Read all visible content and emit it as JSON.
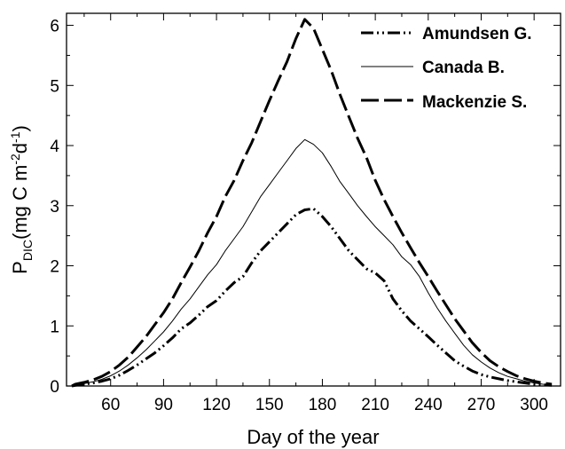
{
  "chart_data": {
    "type": "line",
    "title": "",
    "xlabel": "Day of the year",
    "ylabel": {
      "main": "P",
      "sub": "DIC",
      "unit_a": "(mg C m",
      "sup_a": "-2",
      "unit_b": "d",
      "sup_b": "-1",
      "unit_c": ")"
    },
    "xlim": [
      35,
      315
    ],
    "ylim": [
      0,
      6.2
    ],
    "xticks": [
      60,
      90,
      120,
      150,
      180,
      210,
      240,
      270,
      300
    ],
    "yticks": [
      0,
      1,
      2,
      3,
      4,
      5,
      6
    ],
    "legend_position": "top-right",
    "grid": false,
    "series": [
      {
        "name": "Amundsen G.",
        "style": "dash-dot-dot",
        "x": [
          38,
          40,
          45,
          50,
          55,
          60,
          65,
          70,
          75,
          80,
          85,
          90,
          95,
          100,
          105,
          110,
          115,
          120,
          125,
          130,
          135,
          140,
          145,
          150,
          155,
          160,
          165,
          170,
          175,
          180,
          185,
          190,
          195,
          200,
          205,
          210,
          215,
          220,
          225,
          230,
          235,
          240,
          245,
          250,
          255,
          260,
          265,
          270,
          275,
          280,
          285,
          290,
          295,
          300,
          305,
          310
        ],
        "y": [
          0.0,
          0.01,
          0.03,
          0.05,
          0.08,
          0.12,
          0.18,
          0.26,
          0.35,
          0.45,
          0.55,
          0.67,
          0.8,
          0.95,
          1.05,
          1.18,
          1.32,
          1.42,
          1.58,
          1.72,
          1.82,
          2.05,
          2.25,
          2.4,
          2.55,
          2.7,
          2.85,
          2.93,
          2.95,
          2.82,
          2.65,
          2.45,
          2.25,
          2.1,
          1.95,
          1.88,
          1.75,
          1.45,
          1.25,
          1.08,
          0.95,
          0.82,
          0.68,
          0.55,
          0.42,
          0.33,
          0.25,
          0.19,
          0.15,
          0.12,
          0.09,
          0.07,
          0.05,
          0.03,
          0.02,
          0.01
        ]
      },
      {
        "name": "Canada B.",
        "style": "solid-thin",
        "x": [
          38,
          40,
          45,
          50,
          55,
          60,
          65,
          70,
          75,
          80,
          85,
          90,
          95,
          100,
          105,
          110,
          115,
          120,
          125,
          130,
          135,
          140,
          145,
          150,
          155,
          160,
          165,
          170,
          175,
          180,
          185,
          190,
          195,
          200,
          205,
          210,
          215,
          220,
          225,
          230,
          235,
          240,
          245,
          250,
          255,
          260,
          265,
          270,
          275,
          280,
          285,
          290,
          295,
          300,
          305,
          310
        ],
        "y": [
          0.0,
          0.02,
          0.04,
          0.07,
          0.11,
          0.17,
          0.25,
          0.35,
          0.47,
          0.6,
          0.75,
          0.9,
          1.08,
          1.28,
          1.45,
          1.65,
          1.85,
          2.02,
          2.25,
          2.45,
          2.65,
          2.9,
          3.15,
          3.35,
          3.55,
          3.75,
          3.95,
          4.1,
          4.02,
          3.88,
          3.65,
          3.4,
          3.2,
          3.0,
          2.82,
          2.65,
          2.5,
          2.35,
          2.15,
          2.02,
          1.82,
          1.55,
          1.3,
          1.08,
          0.88,
          0.68,
          0.52,
          0.4,
          0.3,
          0.22,
          0.16,
          0.12,
          0.08,
          0.05,
          0.03,
          0.02
        ]
      },
      {
        "name": "Mackenzie S.",
        "style": "long-dash",
        "x": [
          38,
          40,
          45,
          50,
          55,
          60,
          65,
          70,
          75,
          80,
          85,
          90,
          95,
          100,
          105,
          110,
          115,
          120,
          125,
          130,
          135,
          140,
          145,
          150,
          155,
          160,
          165,
          170,
          175,
          180,
          185,
          190,
          195,
          200,
          205,
          210,
          215,
          220,
          225,
          230,
          235,
          240,
          245,
          250,
          255,
          260,
          265,
          270,
          275,
          280,
          285,
          290,
          295,
          300,
          305,
          310
        ],
        "y": [
          0.0,
          0.03,
          0.06,
          0.1,
          0.16,
          0.24,
          0.35,
          0.48,
          0.65,
          0.82,
          1.02,
          1.22,
          1.45,
          1.72,
          1.98,
          2.25,
          2.55,
          2.82,
          3.15,
          3.42,
          3.75,
          4.05,
          4.4,
          4.75,
          5.08,
          5.4,
          5.78,
          6.1,
          5.95,
          5.6,
          5.25,
          4.85,
          4.48,
          4.12,
          3.8,
          3.42,
          3.1,
          2.82,
          2.55,
          2.3,
          2.05,
          1.82,
          1.58,
          1.35,
          1.12,
          0.92,
          0.72,
          0.56,
          0.42,
          0.32,
          0.24,
          0.17,
          0.12,
          0.08,
          0.05,
          0.03
        ]
      }
    ]
  }
}
